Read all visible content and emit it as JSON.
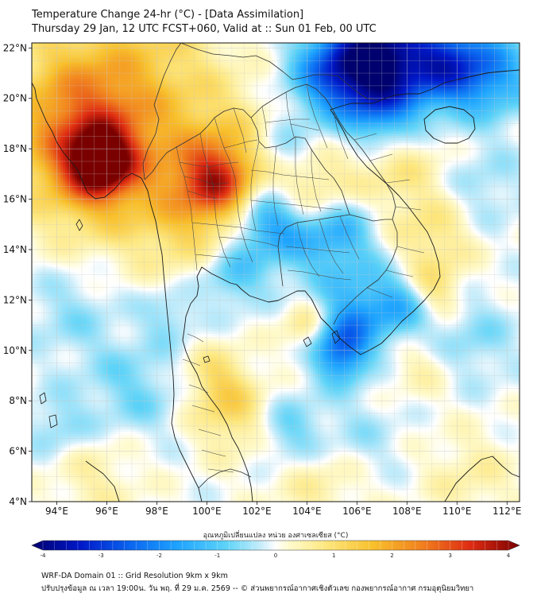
{
  "header": {
    "title_line1": "Temperature Change 24-hr (°C) - [Data Assimilation]",
    "title_line2": "Thursday 29 Jan, 12 UTC FCST+060, Valid at :: Sun 01 Feb, 00 UTC"
  },
  "map": {
    "lon_range": [
      93,
      112.5
    ],
    "lat_range": [
      4,
      22.2
    ],
    "lon_ticks": [
      "94°E",
      "96°E",
      "98°E",
      "100°E",
      "102°E",
      "104°E",
      "106°E",
      "108°E",
      "110°E",
      "112°E"
    ],
    "lon_tick_values": [
      94,
      96,
      98,
      100,
      102,
      104,
      106,
      108,
      110,
      112
    ],
    "lat_ticks": [
      "4°N",
      "6°N",
      "8°N",
      "10°N",
      "12°N",
      "14°N",
      "16°N",
      "18°N",
      "20°N",
      "22°N"
    ],
    "lat_tick_values": [
      4,
      6,
      8,
      10,
      12,
      14,
      16,
      18,
      20,
      22
    ],
    "grid": true,
    "field_blobs": [
      {
        "lon": 95.7,
        "lat": 17.5,
        "value": 2.9,
        "spread": 0.9
      },
      {
        "lon": 95.5,
        "lat": 17.6,
        "value": 2.2,
        "spread": 2.0
      },
      {
        "lon": 100.3,
        "lat": 16.7,
        "value": 2.2,
        "spread": 1.0
      },
      {
        "lon": 100.5,
        "lat": 17.8,
        "value": 1.2,
        "spread": 1.6
      },
      {
        "lon": 94.5,
        "lat": 20.0,
        "value": 1.1,
        "spread": 2.0
      },
      {
        "lon": 97.5,
        "lat": 21.5,
        "value": 1.0,
        "spread": 2.4
      },
      {
        "lon": 99.0,
        "lat": 15.0,
        "value": 0.9,
        "spread": 1.5
      },
      {
        "lon": 104.2,
        "lat": 16.2,
        "value": 1.1,
        "spread": 1.1
      },
      {
        "lon": 107.5,
        "lat": 17.5,
        "value": 0.8,
        "spread": 1.4
      },
      {
        "lon": 109.0,
        "lat": 14.5,
        "value": 0.8,
        "spread": 1.2
      },
      {
        "lon": 109.0,
        "lat": 12.3,
        "value": 1.0,
        "spread": 0.8
      },
      {
        "lon": 104.0,
        "lat": 11.0,
        "value": 0.9,
        "spread": 0.7
      },
      {
        "lon": 101.0,
        "lat": 7.5,
        "value": 1.0,
        "spread": 1.1
      },
      {
        "lon": 100.3,
        "lat": 9.0,
        "value": 0.8,
        "spread": 0.9
      },
      {
        "lon": 104.5,
        "lat": 5.0,
        "value": 0.6,
        "spread": 1.4
      },
      {
        "lon": 95.5,
        "lat": 5.0,
        "value": 0.5,
        "spread": 1.3
      },
      {
        "lon": 108.5,
        "lat": 9.5,
        "value": 0.5,
        "spread": 1.0
      },
      {
        "lon": 110.5,
        "lat": 5.0,
        "value": 0.5,
        "spread": 1.3
      },
      {
        "lon": 106.8,
        "lat": 21.7,
        "value": -3.5,
        "spread": 1.3
      },
      {
        "lon": 109.5,
        "lat": 21.4,
        "value": -2.6,
        "spread": 1.2
      },
      {
        "lon": 105.0,
        "lat": 21.0,
        "value": -2.0,
        "spread": 1.2
      },
      {
        "lon": 107.0,
        "lat": 19.5,
        "value": -1.6,
        "spread": 1.1
      },
      {
        "lon": 111.5,
        "lat": 21.0,
        "value": -1.4,
        "spread": 1.2
      },
      {
        "lon": 103.0,
        "lat": 18.0,
        "value": -0.7,
        "spread": 0.9
      },
      {
        "lon": 102.3,
        "lat": 15.2,
        "value": -1.2,
        "spread": 0.9
      },
      {
        "lon": 103.5,
        "lat": 14.6,
        "value": -1.0,
        "spread": 1.2
      },
      {
        "lon": 105.3,
        "lat": 14.8,
        "value": -1.2,
        "spread": 1.0
      },
      {
        "lon": 101.0,
        "lat": 13.0,
        "value": -1.0,
        "spread": 0.9
      },
      {
        "lon": 106.0,
        "lat": 12.0,
        "value": -1.1,
        "spread": 1.2
      },
      {
        "lon": 107.8,
        "lat": 11.7,
        "value": -1.2,
        "spread": 0.9
      },
      {
        "lon": 105.3,
        "lat": 9.8,
        "value": -1.5,
        "spread": 0.8
      },
      {
        "lon": 105.5,
        "lat": 10.6,
        "value": -1.1,
        "spread": 0.8
      },
      {
        "lon": 103.3,
        "lat": 6.8,
        "value": -0.9,
        "spread": 1.0
      },
      {
        "lon": 97.0,
        "lat": 8.5,
        "value": -0.7,
        "spread": 1.4
      },
      {
        "lon": 94.5,
        "lat": 11.5,
        "value": -0.5,
        "spread": 1.3
      },
      {
        "lon": 98.5,
        "lat": 11.5,
        "value": -0.6,
        "spread": 0.8
      },
      {
        "lon": 110.5,
        "lat": 10.5,
        "value": -0.6,
        "spread": 1.3
      },
      {
        "lon": 111.0,
        "lat": 16.5,
        "value": -0.5,
        "spread": 1.2
      },
      {
        "lon": 106.0,
        "lat": 6.5,
        "value": -0.5,
        "spread": 1.2
      },
      {
        "lon": 94.0,
        "lat": 7.0,
        "value": -0.6,
        "spread": 0.9
      }
    ]
  },
  "colorbar": {
    "title": "อุณหภูมิเปลี่ยนแปลง หน่วย องศาเซลเซียส (°C)",
    "min": -4,
    "max": 4,
    "tick_values": [
      -4,
      -3,
      -2,
      -1,
      0,
      1,
      2,
      3,
      4
    ],
    "tick_labels": [
      "-4",
      "-3",
      "-2",
      "-1",
      "0",
      "1",
      "2",
      "3",
      "4"
    ],
    "color_stops": [
      {
        "v": -4.0,
        "c": "#00006e"
      },
      {
        "v": -3.2,
        "c": "#0018c8"
      },
      {
        "v": -2.4,
        "c": "#0a64ef"
      },
      {
        "v": -1.6,
        "c": "#1ea4ff"
      },
      {
        "v": -0.8,
        "c": "#5fd4f8"
      },
      {
        "v": -0.2,
        "c": "#cfeffb"
      },
      {
        "v": 0.0,
        "c": "#ffffff"
      },
      {
        "v": 0.2,
        "c": "#fffbd0"
      },
      {
        "v": 0.8,
        "c": "#fde881"
      },
      {
        "v": 1.6,
        "c": "#f8c02c"
      },
      {
        "v": 2.4,
        "c": "#f1801e"
      },
      {
        "v": 3.2,
        "c": "#de2b12"
      },
      {
        "v": 4.0,
        "c": "#7a0000"
      }
    ]
  },
  "footer": {
    "line1": "WRF-DA Domain 01 :: Grid Resolution 9km x 9km",
    "line2": "ปรับปรุงข้อมูล ณ เวลา 19:00น. วัน พฤ. ที่ 29 ม.ค. 2569 -- © ส่วนพยากรณ์อากาศเชิงตัวเลข กองพยากรณ์อากาศ กรมอุตุนิยมวิทยา"
  },
  "colors": {
    "coastline": "#1a1a1a",
    "border": "#333333",
    "grid": "#c8c8c8"
  }
}
